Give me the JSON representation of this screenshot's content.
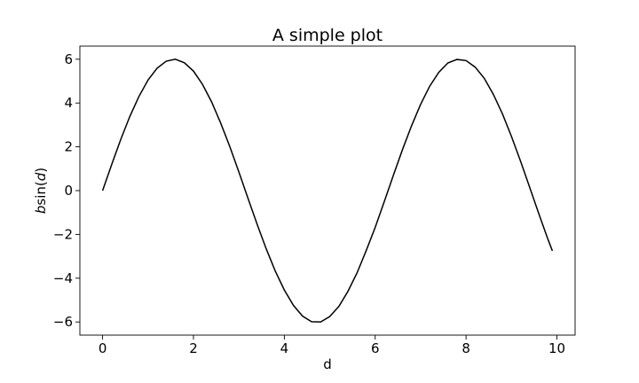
{
  "chart_data": {
    "type": "line",
    "title": "A simple plot",
    "xlabel": "d",
    "ylabel": {
      "prefix": "b",
      "func": "sin",
      "open": "(",
      "arg": "d",
      "close": ")"
    },
    "xlim": [
      -0.5,
      10.4
    ],
    "ylim": [
      -6.6,
      6.6
    ],
    "x_ticks": [
      0,
      2,
      4,
      6,
      8,
      10
    ],
    "y_ticks": [
      -6,
      -4,
      -2,
      0,
      2,
      4,
      6
    ],
    "grid": false,
    "line_color": "#000000",
    "series": [
      {
        "x": [
          0,
          0.2,
          0.4,
          0.6,
          0.8,
          1.0,
          1.2,
          1.4,
          1.6,
          1.8,
          2.0,
          2.2,
          2.4,
          2.6,
          2.8,
          3.0,
          3.2,
          3.4,
          3.6,
          3.8,
          4.0,
          4.2,
          4.4,
          4.6,
          4.8,
          5.0,
          5.2,
          5.4,
          5.6,
          5.8,
          6.0,
          6.2,
          6.4,
          6.6,
          6.8,
          7.0,
          7.2,
          7.4,
          7.6,
          7.8,
          8.0,
          8.2,
          8.4,
          8.6,
          8.8,
          9.0,
          9.2,
          9.4,
          9.6,
          9.8,
          9.9
        ],
        "y": [
          0,
          1.19,
          2.34,
          3.39,
          4.3,
          5.05,
          5.59,
          5.91,
          6.0,
          5.84,
          5.46,
          4.85,
          4.05,
          3.08,
          2.01,
          0.85,
          -0.35,
          -1.53,
          -2.65,
          -3.67,
          -4.54,
          -5.24,
          -5.73,
          -5.99,
          -6.0,
          -5.75,
          -5.29,
          -4.6,
          -3.76,
          -2.75,
          -1.68,
          -0.5,
          0.7,
          1.87,
          2.96,
          3.94,
          4.77,
          5.4,
          5.83,
          5.99,
          5.94,
          5.64,
          5.13,
          4.4,
          3.51,
          2.47,
          1.34,
          0.15,
          -1.05,
          -2.21,
          -2.75
        ]
      }
    ]
  }
}
